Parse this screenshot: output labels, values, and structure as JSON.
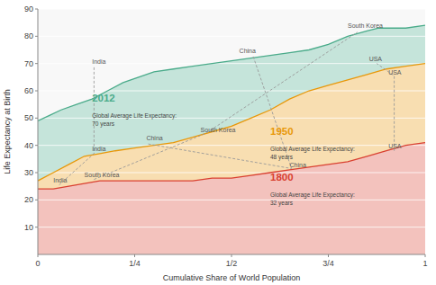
{
  "chart_data": {
    "type": "area",
    "xlabel": "Cumulative Share of World Population",
    "ylabel": "Life Expectancy at Birth",
    "xlim": [
      0,
      1
    ],
    "ylim": [
      0,
      90
    ],
    "xticks": [
      0,
      {
        "value": 0.25,
        "label": "1/4"
      },
      {
        "value": 0.5,
        "label": "1/2"
      },
      {
        "value": 0.75,
        "label": "3/4"
      },
      1
    ],
    "yticks": [
      10,
      20,
      30,
      40,
      50,
      60,
      70,
      80,
      90
    ],
    "grid": true,
    "series": [
      {
        "name": "1800",
        "type": "area",
        "color": "#d94030",
        "x": [
          0.0,
          0.04,
          0.08,
          0.12,
          0.16,
          0.2,
          0.25,
          0.3,
          0.35,
          0.4,
          0.45,
          0.5,
          0.55,
          0.6,
          0.65,
          0.7,
          0.75,
          0.8,
          0.85,
          0.9,
          0.95,
          1.0
        ],
        "values": [
          24,
          24,
          25,
          26,
          27,
          27,
          27,
          27,
          27,
          27,
          28,
          28,
          29,
          30,
          31,
          32,
          33,
          34,
          36,
          38,
          40,
          41
        ]
      },
      {
        "name": "1950",
        "type": "area",
        "color": "#e8980a",
        "x": [
          0.0,
          0.04,
          0.08,
          0.12,
          0.16,
          0.2,
          0.25,
          0.3,
          0.35,
          0.4,
          0.45,
          0.5,
          0.55,
          0.6,
          0.65,
          0.7,
          0.75,
          0.8,
          0.85,
          0.9,
          0.95,
          1.0
        ],
        "values": [
          27,
          30,
          33,
          36,
          37,
          38,
          39,
          40,
          41,
          43,
          45,
          47,
          50,
          53,
          57,
          60,
          62,
          64,
          66,
          68,
          69,
          70
        ]
      },
      {
        "name": "2012",
        "type": "area",
        "color": "#4aab8a",
        "x": [
          0.0,
          0.03,
          0.06,
          0.1,
          0.14,
          0.18,
          0.22,
          0.26,
          0.3,
          0.35,
          0.4,
          0.45,
          0.5,
          0.55,
          0.6,
          0.65,
          0.7,
          0.75,
          0.8,
          0.85,
          0.88,
          0.9,
          0.95,
          1.0
        ],
        "values": [
          49,
          51,
          53,
          55,
          57,
          60,
          63,
          65,
          67,
          68,
          69,
          70,
          71,
          72,
          73,
          74,
          75,
          77,
          80,
          82,
          83,
          83,
          83,
          84
        ]
      },
      {
        "type": "line",
        "line_style": "dashed",
        "color": "#999999",
        "x": [
          0.055,
          0.145,
          0.145
        ],
        "values": [
          25.5,
          37.0,
          69.0
        ]
      },
      {
        "type": "line",
        "line_style": "dashed",
        "color": "#999999",
        "x": [
          0.145,
          0.435,
          0.825
        ],
        "values": [
          27.5,
          44.5,
          81.5
        ]
      },
      {
        "type": "line",
        "line_style": "dashed",
        "color": "#999999",
        "x": [
          0.285,
          0.655,
          0.555
        ],
        "values": [
          40.5,
          31.5,
          73.0
        ]
      },
      {
        "type": "line",
        "line_style": "dashed",
        "color": "#999999",
        "x": [
          0.92,
          0.92,
          0.875
        ],
        "values": [
          38.0,
          65.5,
          70.0
        ]
      }
    ],
    "annotations": [
      {
        "text": "2012",
        "x": 0.14,
        "y": 56,
        "color": "#4aab8a"
      },
      {
        "text": "Global Average Life Expectancy:\n70 years",
        "x": 0.14,
        "y": 50,
        "color": "#444444"
      },
      {
        "text": "1950",
        "x": 0.6,
        "y": 44,
        "color": "#e8980a"
      },
      {
        "text": "Global Average Life Expectancy:\n48 years",
        "x": 0.6,
        "y": 38,
        "color": "#444444"
      },
      {
        "text": "1800",
        "x": 0.6,
        "y": 27,
        "color": "#d94030"
      },
      {
        "text": "Global Average Life Expectancy:\n32 years",
        "x": 0.6,
        "y": 21,
        "color": "#444444"
      },
      {
        "text": "India",
        "x": 0.14,
        "y": 69.5,
        "color": "#555555"
      },
      {
        "text": "India",
        "x": 0.14,
        "y": 37.5,
        "color": "#555555"
      },
      {
        "text": "India",
        "x": 0.04,
        "y": 26.0,
        "color": "#555555"
      },
      {
        "text": "South Korea",
        "x": 0.8,
        "y": 82.5,
        "color": "#555555"
      },
      {
        "text": "South Korea",
        "x": 0.42,
        "y": 44.5,
        "color": "#555555"
      },
      {
        "text": "South Korea",
        "x": 0.12,
        "y": 28.0,
        "color": "#555555"
      },
      {
        "text": "China",
        "x": 0.52,
        "y": 73.5,
        "color": "#555555"
      },
      {
        "text": "China",
        "x": 0.28,
        "y": 41.5,
        "color": "#555555"
      },
      {
        "text": "China",
        "x": 0.65,
        "y": 31.5,
        "color": "#555555"
      },
      {
        "text": "USA",
        "x": 0.855,
        "y": 70.5,
        "color": "#555555"
      },
      {
        "text": "USA",
        "x": 0.905,
        "y": 65.5,
        "color": "#555555"
      },
      {
        "text": "USA",
        "x": 0.905,
        "y": 38.5,
        "color": "#555555"
      }
    ]
  }
}
